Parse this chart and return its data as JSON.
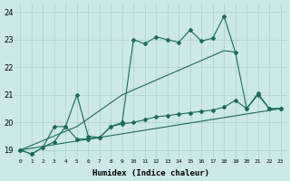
{
  "background_color": "#cce8e8",
  "grid_color": "#aad0d0",
  "line_color": "#1a6b5a",
  "xlim": [
    -0.5,
    23.5
  ],
  "ylim": [
    18.7,
    24.3
  ],
  "xtick_labels": [
    "0",
    "1",
    "2",
    "3",
    "4",
    "5",
    "6",
    "7",
    "8",
    "9",
    "10",
    "11",
    "12",
    "13",
    "14",
    "15",
    "16",
    "17",
    "18",
    "19",
    "20",
    "21",
    "22",
    "23"
  ],
  "ytick_values": [
    19,
    20,
    21,
    22,
    23,
    24
  ],
  "xlabel": "Humidex (Indice chaleur)",
  "line1_x": [
    0,
    1,
    2,
    3,
    4,
    5,
    6,
    7,
    8,
    9,
    10,
    11,
    12,
    13,
    14,
    15,
    16,
    17,
    18,
    19,
    20,
    21,
    22,
    23
  ],
  "line1_y": [
    19.0,
    18.85,
    19.1,
    19.85,
    19.85,
    21.0,
    19.5,
    19.45,
    19.85,
    20.0,
    23.0,
    22.85,
    23.1,
    23.0,
    22.9,
    23.35,
    22.95,
    23.05,
    23.85,
    22.55,
    20.5,
    21.0,
    20.5,
    20.5
  ],
  "line2_x": [
    0,
    5,
    9,
    18,
    19
  ],
  "line2_y": [
    19.0,
    19.85,
    21.0,
    22.6,
    22.55
  ],
  "line3_x": [
    0,
    23
  ],
  "line3_y": [
    19.0,
    20.5
  ],
  "line4_x": [
    0,
    1,
    2,
    3,
    4,
    5,
    6,
    7,
    8,
    9,
    10,
    11,
    12,
    13,
    14,
    15,
    16,
    17,
    18,
    19,
    20,
    21,
    22,
    23
  ],
  "line4_y": [
    19.0,
    18.85,
    19.1,
    19.3,
    19.85,
    19.4,
    19.4,
    19.45,
    19.85,
    19.95,
    20.0,
    20.1,
    20.2,
    20.25,
    20.3,
    20.35,
    20.4,
    20.45,
    20.55,
    20.8,
    20.5,
    21.05,
    20.5,
    20.5
  ]
}
